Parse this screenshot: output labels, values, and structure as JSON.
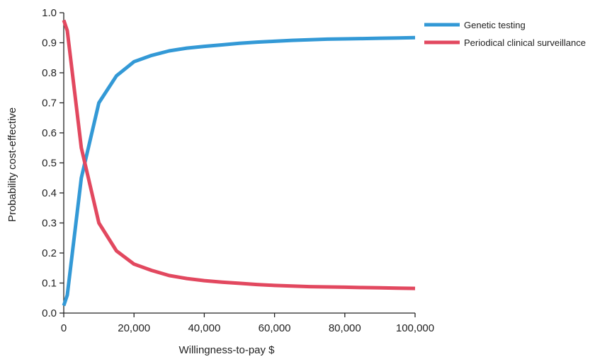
{
  "chart_data": {
    "type": "line",
    "title": "",
    "xlabel": "Willingness-to-pay $",
    "ylabel": "Probability cost-effective",
    "xlim": [
      0,
      100000
    ],
    "ylim": [
      0,
      1.0
    ],
    "grid": false,
    "legend_position": "top-right",
    "x_ticks": [
      0,
      20000,
      40000,
      60000,
      80000,
      100000
    ],
    "x_tick_labels": [
      "0",
      "20,000",
      "40,000",
      "60,000",
      "80,000",
      "100,000"
    ],
    "y_ticks": [
      0,
      0.1,
      0.2,
      0.3,
      0.4,
      0.5,
      0.6,
      0.7,
      0.8,
      0.9,
      1.0
    ],
    "y_tick_labels": [
      "0.0",
      "0.1",
      "0.2",
      "0.3",
      "0.4",
      "0.5",
      "0.6",
      "0.7",
      "0.8",
      "0.9",
      "1.0"
    ],
    "series": [
      {
        "name": "Genetic testing",
        "color": "#3399d6",
        "x": [
          0,
          1000,
          5000,
          10000,
          15000,
          20000,
          25000,
          30000,
          35000,
          40000,
          45000,
          50000,
          55000,
          60000,
          65000,
          70000,
          75000,
          80000,
          85000,
          90000,
          95000,
          100000
        ],
        "y": [
          0.025,
          0.06,
          0.45,
          0.7,
          0.79,
          0.837,
          0.858,
          0.873,
          0.882,
          0.888,
          0.893,
          0.898,
          0.902,
          0.905,
          0.908,
          0.91,
          0.912,
          0.913,
          0.914,
          0.915,
          0.916,
          0.917
        ]
      },
      {
        "name": "Periodical clinical surveillance",
        "color": "#e2485f",
        "x": [
          0,
          1000,
          5000,
          10000,
          15000,
          20000,
          25000,
          30000,
          35000,
          40000,
          45000,
          50000,
          55000,
          60000,
          65000,
          70000,
          75000,
          80000,
          85000,
          90000,
          95000,
          100000
        ],
        "y": [
          0.975,
          0.94,
          0.55,
          0.3,
          0.207,
          0.163,
          0.142,
          0.125,
          0.115,
          0.108,
          0.103,
          0.099,
          0.095,
          0.092,
          0.09,
          0.088,
          0.087,
          0.086,
          0.085,
          0.084,
          0.083,
          0.082
        ]
      }
    ]
  }
}
